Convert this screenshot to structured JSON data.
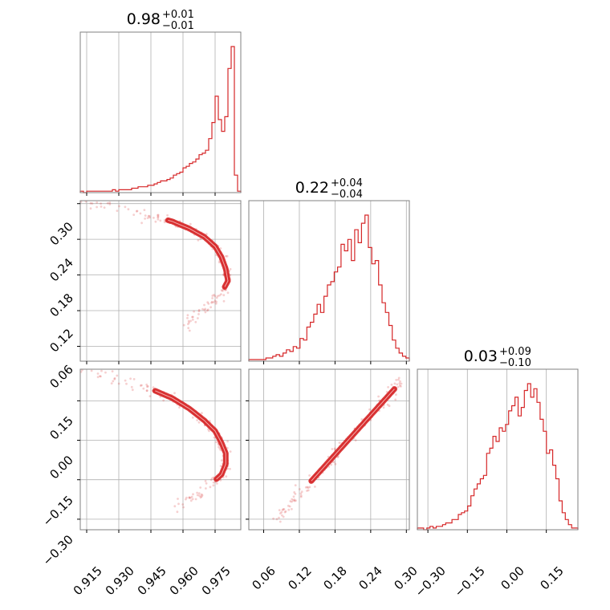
{
  "colors": {
    "hist": "#d62728",
    "contour": "#d62728",
    "points": "#d62728",
    "grid": "#b0b0b0",
    "frame": "#808080"
  },
  "titles": [
    {
      "value": "0.98",
      "plus": "+0.01",
      "minus": "−0.01"
    },
    {
      "value": "0.22",
      "plus": "+0.04",
      "minus": "−0.04"
    },
    {
      "value": "0.03",
      "plus": "+0.09",
      "minus": "−0.10"
    }
  ],
  "axis_ticks": {
    "p0": [
      "0.915",
      "0.930",
      "0.945",
      "0.960",
      "0.975"
    ],
    "p1": [
      "0.06",
      "0.12",
      "0.18",
      "0.24",
      "0.30"
    ],
    "p2": [
      "−0.30",
      "−0.15",
      "0.00",
      "0.15"
    ]
  },
  "chart_data": {
    "type": "corner",
    "grid": true,
    "parameters": [
      {
        "range": [
          0.912,
          0.987
        ],
        "ticks": [
          0.915,
          0.93,
          0.945,
          0.96,
          0.975
        ]
      },
      {
        "range": [
          0.035,
          0.305
        ],
        "ticks": [
          0.06,
          0.12,
          0.18,
          0.24,
          0.3
        ]
      },
      {
        "range": [
          -0.34,
          0.27
        ],
        "ticks": [
          -0.3,
          -0.15,
          0.0,
          0.15
        ]
      }
    ],
    "histograms": [
      {
        "param": 0,
        "bins": [
          0.912,
          0.987
        ],
        "counts": [
          1,
          0,
          1,
          1,
          1,
          1,
          1,
          1,
          1,
          1,
          2,
          1,
          2,
          2,
          2,
          2,
          3,
          3,
          4,
          4,
          4,
          5,
          5,
          6,
          7,
          8,
          8,
          9,
          10,
          12,
          13,
          14,
          17,
          18,
          20,
          21,
          23,
          26,
          27,
          29,
          37,
          48,
          66,
          50,
          42,
          52,
          85,
          100,
          12,
          1
        ]
      },
      {
        "param": 1,
        "bins": [
          0.035,
          0.305
        ],
        "counts": [
          1,
          1,
          1,
          1,
          1,
          2,
          2,
          3,
          4,
          3,
          5,
          7,
          6,
          9,
          8,
          14,
          13,
          21,
          24,
          29,
          35,
          30,
          40,
          47,
          49,
          55,
          58,
          72,
          68,
          75,
          62,
          81,
          73,
          85,
          90,
          70,
          60,
          62,
          47,
          36,
          30,
          22,
          13,
          8,
          5,
          3,
          2
        ]
      },
      {
        "param": 2,
        "bins": [
          -0.34,
          0.27
        ],
        "counts": [
          1,
          1,
          0,
          1,
          2,
          1,
          2,
          2,
          3,
          4,
          4,
          6,
          6,
          9,
          10,
          11,
          14,
          20,
          24,
          27,
          30,
          32,
          45,
          48,
          55,
          52,
          60,
          58,
          62,
          70,
          73,
          78,
          67,
          72,
          82,
          86,
          78,
          83,
          75,
          65,
          58,
          45,
          47,
          38,
          30,
          17,
          10,
          6,
          3,
          1,
          1
        ]
      }
    ],
    "pairs": [
      {
        "x": 0,
        "y": 1,
        "curve": [
          [
            0.912,
            0.302
          ],
          [
            0.93,
            0.292
          ],
          [
            0.945,
            0.28
          ],
          [
            0.955,
            0.27
          ],
          [
            0.963,
            0.258
          ],
          [
            0.97,
            0.244
          ],
          [
            0.975,
            0.228
          ],
          [
            0.978,
            0.21
          ],
          [
            0.98,
            0.19
          ],
          [
            0.981,
            0.17
          ],
          [
            0.978,
            0.15
          ],
          [
            0.973,
            0.13
          ],
          [
            0.967,
            0.112
          ],
          [
            0.96,
            0.095
          ]
        ],
        "core": [
          0.95,
          0.982
        ]
      },
      {
        "x": 0,
        "y": 2,
        "curve": [
          [
            0.913,
            0.27
          ],
          [
            0.93,
            0.235
          ],
          [
            0.945,
            0.195
          ],
          [
            0.955,
            0.16
          ],
          [
            0.963,
            0.12
          ],
          [
            0.97,
            0.075
          ],
          [
            0.975,
            0.035
          ],
          [
            0.978,
            -0.01
          ],
          [
            0.98,
            -0.05
          ],
          [
            0.98,
            -0.09
          ],
          [
            0.978,
            -0.13
          ],
          [
            0.972,
            -0.175
          ],
          [
            0.965,
            -0.215
          ],
          [
            0.955,
            -0.26
          ]
        ],
        "core": [
          0.948,
          0.982
        ]
      },
      {
        "x": 1,
        "y": 2,
        "curve": [
          [
            0.08,
            -0.3
          ],
          [
            0.1,
            -0.255
          ],
          [
            0.12,
            -0.205
          ],
          [
            0.14,
            -0.155
          ],
          [
            0.16,
            -0.105
          ],
          [
            0.18,
            -0.055
          ],
          [
            0.2,
            -0.005
          ],
          [
            0.22,
            0.045
          ],
          [
            0.24,
            0.095
          ],
          [
            0.26,
            0.145
          ],
          [
            0.28,
            0.195
          ],
          [
            0.295,
            0.24
          ]
        ],
        "core": [
          0.14,
          0.28
        ]
      }
    ]
  }
}
